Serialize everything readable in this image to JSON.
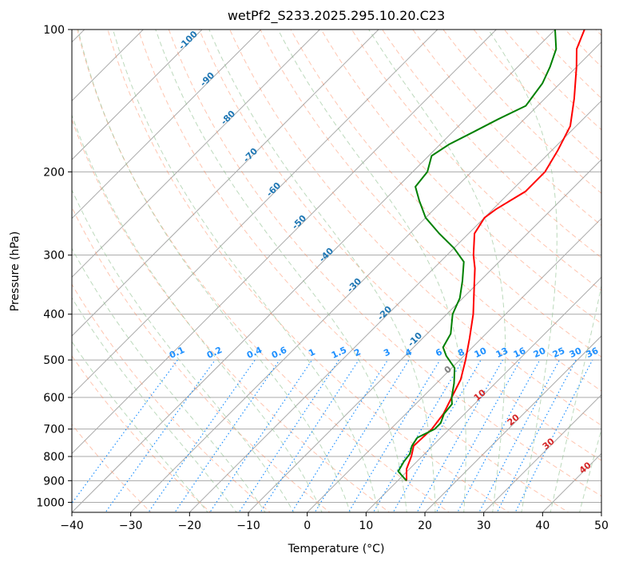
{
  "chart_data": {
    "type": "skewt",
    "title": "wetPf2_S233.2025.295.10.20.C23",
    "xlabel": "Temperature (°C)",
    "ylabel": "Pressure (hPa)",
    "xlim": [
      -40,
      50
    ],
    "ylim": [
      1050,
      100
    ],
    "x_ticks": [
      -40,
      -30,
      -20,
      -10,
      0,
      10,
      20,
      30,
      40,
      50
    ],
    "x_tick_labels": [
      "−40",
      "−30",
      "−20",
      "−10",
      "0",
      "10",
      "20",
      "30",
      "40",
      "50"
    ],
    "y_ticks": [
      100,
      200,
      300,
      400,
      500,
      600,
      700,
      800,
      900,
      1000
    ],
    "y_tick_labels": [
      "100",
      "200",
      "300",
      "400",
      "500",
      "600",
      "700",
      "800",
      "900",
      "1000"
    ],
    "temperature": {
      "name": "Temperature",
      "color": "#ff0000",
      "points": [
        {
          "p": 900,
          "t": 11.5
        },
        {
          "p": 850,
          "t": 9.5
        },
        {
          "p": 800,
          "t": 8.2
        },
        {
          "p": 760,
          "t": 6.8
        },
        {
          "p": 700,
          "t": 7.0
        },
        {
          "p": 650,
          "t": 6.4
        },
        {
          "p": 600,
          "t": 5.0
        },
        {
          "p": 550,
          "t": 3.5
        },
        {
          "p": 500,
          "t": 1.0
        },
        {
          "p": 450,
          "t": -2.0
        },
        {
          "p": 400,
          "t": -5.5
        },
        {
          "p": 350,
          "t": -10.0
        },
        {
          "p": 320,
          "t": -13.0
        },
        {
          "p": 300,
          "t": -15.5
        },
        {
          "p": 270,
          "t": -19.0
        },
        {
          "p": 250,
          "t": -20.0
        },
        {
          "p": 240,
          "t": -19.5
        },
        {
          "p": 220,
          "t": -17.5
        },
        {
          "p": 200,
          "t": -17.5
        },
        {
          "p": 180,
          "t": -19.0
        },
        {
          "p": 160,
          "t": -21.0
        },
        {
          "p": 140,
          "t": -25.0
        },
        {
          "p": 120,
          "t": -30.0
        },
        {
          "p": 110,
          "t": -33.0
        },
        {
          "p": 100,
          "t": -35.0
        }
      ]
    },
    "dewpoint": {
      "name": "Dewpoint",
      "color": "#008000",
      "points": [
        {
          "p": 900,
          "t": 11.5
        },
        {
          "p": 880,
          "t": 10.0
        },
        {
          "p": 860,
          "t": 8.5
        },
        {
          "p": 820,
          "t": 7.8
        },
        {
          "p": 790,
          "t": 7.5
        },
        {
          "p": 760,
          "t": 6.5
        },
        {
          "p": 730,
          "t": 6.0
        },
        {
          "p": 700,
          "t": 7.5
        },
        {
          "p": 680,
          "t": 7.5
        },
        {
          "p": 650,
          "t": 6.5
        },
        {
          "p": 620,
          "t": 6.2
        },
        {
          "p": 600,
          "t": 5.0
        },
        {
          "p": 560,
          "t": 3.0
        },
        {
          "p": 520,
          "t": 0.5
        },
        {
          "p": 490,
          "t": -3.0
        },
        {
          "p": 470,
          "t": -5.0
        },
        {
          "p": 440,
          "t": -6.0
        },
        {
          "p": 400,
          "t": -9.0
        },
        {
          "p": 370,
          "t": -10.5
        },
        {
          "p": 340,
          "t": -13.0
        },
        {
          "p": 310,
          "t": -16.0
        },
        {
          "p": 290,
          "t": -20.0
        },
        {
          "p": 270,
          "t": -25.0
        },
        {
          "p": 250,
          "t": -30.0
        },
        {
          "p": 230,
          "t": -34.0
        },
        {
          "p": 215,
          "t": -37.0
        },
        {
          "p": 200,
          "t": -37.5
        },
        {
          "p": 185,
          "t": -39.5
        },
        {
          "p": 175,
          "t": -38.5
        },
        {
          "p": 165,
          "t": -36.5
        },
        {
          "p": 155,
          "t": -34.5
        },
        {
          "p": 145,
          "t": -32.0
        },
        {
          "p": 130,
          "t": -33.0
        },
        {
          "p": 120,
          "t": -34.5
        },
        {
          "p": 110,
          "t": -36.5
        },
        {
          "p": 100,
          "t": -40.0
        }
      ]
    },
    "dry_adiabat_labels": [
      "-100",
      "-90",
      "-80",
      "-70",
      "-60",
      "-50",
      "-40",
      "-30",
      "-20",
      "-10"
    ],
    "dry_adiabat_label_color": "#1f77b4",
    "moist_adiabat_labels": [
      "0",
      "10",
      "20",
      "30",
      "40"
    ],
    "moist_adiabat_label_colors": [
      "#808080",
      "#d62728",
      "#d62728",
      "#d62728",
      "#d62728"
    ],
    "mixing_ratio_labels": [
      "0.1",
      "0.2",
      "0.4",
      "0.6",
      "1",
      "1.5",
      "2",
      "3",
      "4",
      "6",
      "8",
      "10",
      "13",
      "16",
      "20",
      "25",
      "30",
      "36"
    ],
    "mixing_ratio_color": "#1e90ff",
    "colors": {
      "isotherm": "#a9a9a9",
      "isobar": "#a9a9a9",
      "dry_adiabat": "#ff7f50",
      "moist_adiabat": "#90c090",
      "mixing_ratio": "#1e90ff",
      "saturation_curve": "#d2b48c"
    }
  }
}
